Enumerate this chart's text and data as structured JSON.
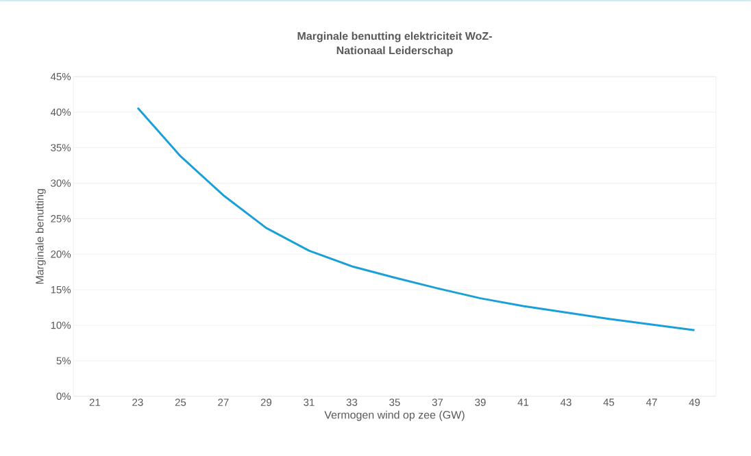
{
  "chart_data": {
    "type": "line",
    "title": "Marginale benutting elektriciteit WoZ-\nNationaal Leiderschap",
    "xlabel": "Vermogen wind op zee (GW)",
    "ylabel": "Marginale benutting",
    "categories": [
      "21",
      "23",
      "25",
      "27",
      "29",
      "31",
      "33",
      "35",
      "37",
      "39",
      "41",
      "43",
      "45",
      "47",
      "49"
    ],
    "series": [
      {
        "color": "#1a9fd9",
        "values": [
          null,
          40.6,
          33.8,
          28.3,
          23.7,
          20.5,
          18.3,
          16.7,
          15.2,
          13.8,
          12.7,
          11.8,
          10.9,
          10.1,
          9.3
        ]
      }
    ],
    "ylim": [
      0,
      45
    ],
    "yticks": [
      {
        "value": 0,
        "label": "0%"
      },
      {
        "value": 5,
        "label": "5%"
      },
      {
        "value": 10,
        "label": "10%"
      },
      {
        "value": 15,
        "label": "15%"
      },
      {
        "value": 20,
        "label": "20%"
      },
      {
        "value": 25,
        "label": "25%"
      },
      {
        "value": 30,
        "label": "30%"
      },
      {
        "value": 35,
        "label": "35%"
      },
      {
        "value": 40,
        "label": "40%"
      },
      {
        "value": 45,
        "label": "45%"
      }
    ],
    "grid": "y",
    "marker": "none",
    "line_style": "solid"
  }
}
